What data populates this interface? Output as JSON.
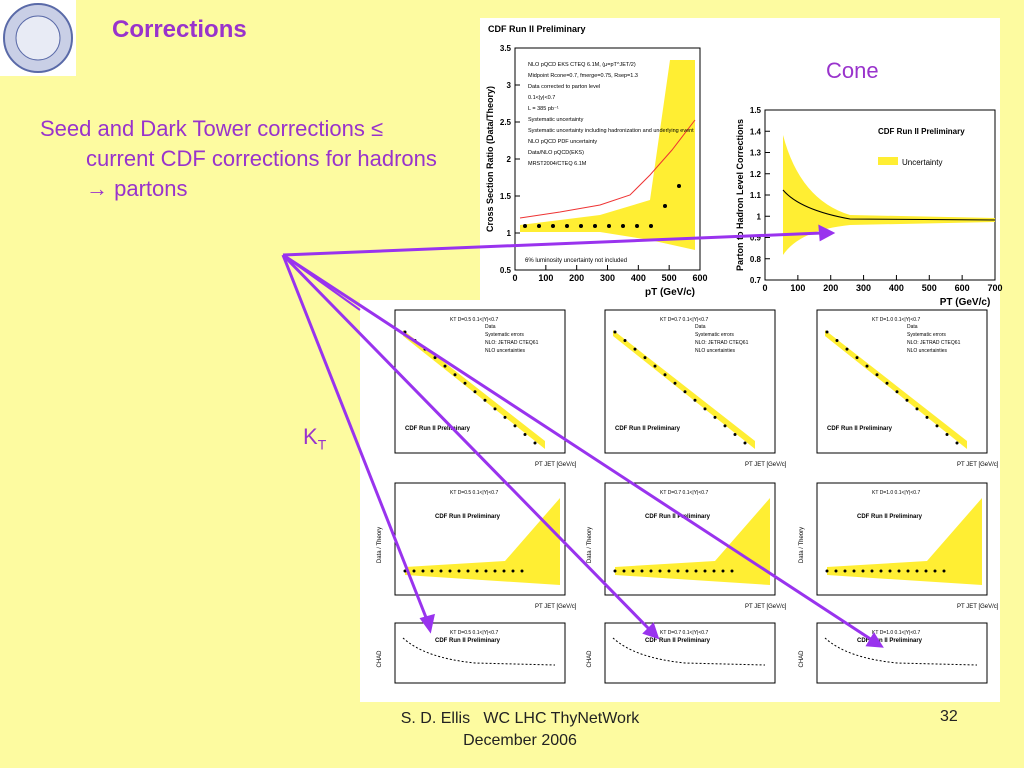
{
  "header": {
    "title": "Corrections"
  },
  "bullet": {
    "text": "Seed and Dark Tower corrections ≤ current CDF corrections for hadrons → partons"
  },
  "labels": {
    "cone": "Cone",
    "kt": "K",
    "kt_sub": "T"
  },
  "footer": {
    "author": "S. D. Ellis   WC LHC ThyNetWork",
    "date": "December 2006",
    "page": "32"
  },
  "cone_ratio_plot": {
    "title": "CDF Run II Preliminary",
    "ylabel": "Cross Section Ratio (Data/Theory)",
    "xlabel": "pT (GeV/c)",
    "legend": [
      "NLO pQCD EKS CTEQ 6.1M, (μ=pT^JET/2)",
      "Midpoint Rcone=0.7, fmerge=0.75, Rsep=1.3",
      "Data corrected to parton level",
      "0.1<|y|<0.7",
      "L = 385 pb⁻¹",
      "Systematic uncertainty",
      "Systematic uncertainty including hadronization and underlying event",
      "NLO pQCD PDF uncertainty",
      "Data/NLO pQCD(EKS)",
      "MRST2004/CTEQ 6.1M"
    ],
    "note": "6% luminosity uncertainty not included",
    "xticks": [
      0,
      100,
      200,
      300,
      400,
      500,
      600
    ],
    "yticks": [
      0.5,
      1,
      1.5,
      2,
      2.5,
      3,
      3.5
    ]
  },
  "cone_correction_plot": {
    "title": "CDF Run II Preliminary",
    "legend": "Uncertainty",
    "ylabel": "Parton to Hadron Level Corrections",
    "xlabel": "PT (GeV/c)",
    "xticks": [
      0,
      100,
      200,
      300,
      400,
      500,
      600,
      700
    ],
    "yticks": [
      0.7,
      0.8,
      0.9,
      1,
      1.1,
      1.2,
      1.3,
      1.4,
      1.5
    ]
  },
  "kt_panels": [
    {
      "title": "KT  D=0.5  0.1<|Y|<0.7",
      "label": "CDF Run II Preliminary",
      "xlabel": "PT JET [GeV/c]"
    },
    {
      "title": "KT  D=0.7  0.1<|Y|<0.7",
      "label": "CDF Run II Preliminary",
      "xlabel": "PT JET [GeV/c]"
    },
    {
      "title": "KT  D=1.0  0.1<|Y|<0.7",
      "label": "CDF Run II Preliminary",
      "xlabel": "PT JET [GeV/c]"
    },
    {
      "title": "KT  D=0.5  0.1<|Y|<0.7",
      "label": "CDF Run II Preliminary",
      "xlabel": "PT JET [GeV/c]",
      "ylabel": "Data / Theory"
    },
    {
      "title": "KT  D=0.7  0.1<|Y|<0.7",
      "label": "CDF Run II Preliminary",
      "xlabel": "PT JET [GeV/c]",
      "ylabel": "Data / Theory"
    },
    {
      "title": "KT  D=1.0  0.1<|Y|<0.7",
      "label": "CDF Run II Preliminary",
      "xlabel": "PT JET [GeV/c]",
      "ylabel": "Data / Theory"
    },
    {
      "title": "KT  D=0.5  0.1<|Y|<0.7",
      "label": "CDF Run II Preliminary",
      "ylabel": "CHAD"
    },
    {
      "title": "KT  D=0.7  0.1<|Y|<0.7",
      "label": "CDF Run II Preliminary",
      "ylabel": "CHAD"
    },
    {
      "title": "KT  D=1.0  0.1<|Y|<0.7",
      "label": "CDF Run II Preliminary",
      "ylabel": "CHAD"
    }
  ],
  "kt_legend": [
    "Data",
    "Systematic errors",
    "NLO: JETRAD CTEQ61",
    "NLO uncertainties"
  ]
}
